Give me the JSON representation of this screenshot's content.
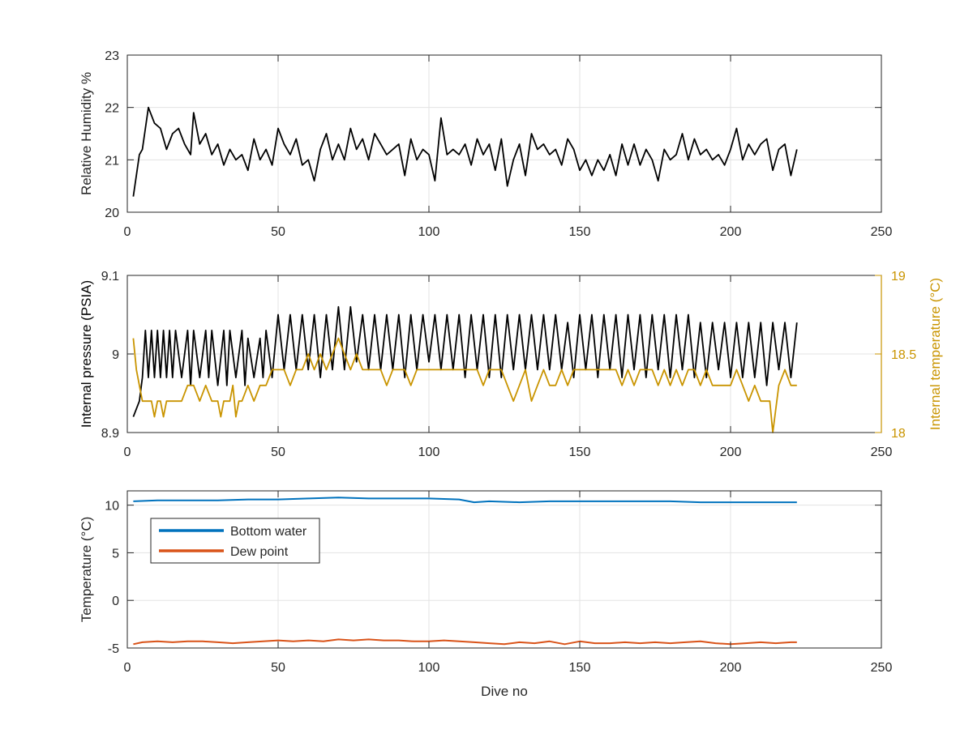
{
  "chart_data": [
    {
      "type": "line",
      "xlabel": "",
      "ylabel": "Relative Humidity %",
      "xlim": [
        0,
        250
      ],
      "ylim": [
        20,
        23
      ],
      "x_ticks": [
        0,
        50,
        100,
        150,
        200,
        250
      ],
      "y_ticks": [
        20,
        21,
        22,
        23
      ],
      "grid": true,
      "series": [
        {
          "color": "#000000",
          "x": [
            2,
            4,
            5,
            7,
            9,
            11,
            13,
            15,
            17,
            19,
            21,
            22,
            24,
            26,
            28,
            30,
            32,
            34,
            36,
            38,
            40,
            42,
            44,
            46,
            48,
            50,
            52,
            54,
            56,
            58,
            60,
            62,
            64,
            66,
            68,
            70,
            72,
            74,
            76,
            78,
            80,
            82,
            84,
            86,
            88,
            90,
            92,
            94,
            96,
            98,
            100,
            102,
            104,
            106,
            108,
            110,
            112,
            114,
            116,
            118,
            120,
            122,
            124,
            126,
            128,
            130,
            132,
            134,
            136,
            138,
            140,
            142,
            144,
            146,
            148,
            150,
            152,
            154,
            156,
            158,
            160,
            162,
            164,
            166,
            168,
            170,
            172,
            174,
            176,
            178,
            180,
            182,
            184,
            186,
            188,
            190,
            192,
            194,
            196,
            198,
            200,
            202,
            204,
            206,
            208,
            210,
            212,
            214,
            216,
            218,
            220,
            222
          ],
          "y": [
            20.3,
            21.1,
            21.2,
            22.0,
            21.7,
            21.6,
            21.2,
            21.5,
            21.6,
            21.3,
            21.1,
            21.9,
            21.3,
            21.5,
            21.1,
            21.3,
            20.9,
            21.2,
            21.0,
            21.1,
            20.8,
            21.4,
            21.0,
            21.2,
            20.9,
            21.6,
            21.3,
            21.1,
            21.4,
            20.9,
            21.0,
            20.6,
            21.2,
            21.5,
            21.0,
            21.3,
            21.0,
            21.6,
            21.2,
            21.4,
            21.0,
            21.5,
            21.3,
            21.1,
            21.2,
            21.3,
            20.7,
            21.4,
            21.0,
            21.2,
            21.1,
            20.6,
            21.8,
            21.1,
            21.2,
            21.1,
            21.3,
            20.9,
            21.4,
            21.1,
            21.3,
            20.8,
            21.4,
            20.5,
            21.0,
            21.3,
            20.7,
            21.5,
            21.2,
            21.3,
            21.1,
            21.2,
            20.9,
            21.4,
            21.2,
            20.8,
            21.0,
            20.7,
            21.0,
            20.8,
            21.1,
            20.7,
            21.3,
            20.9,
            21.3,
            20.9,
            21.2,
            21.0,
            20.6,
            21.2,
            21.0,
            21.1,
            21.5,
            21.0,
            21.4,
            21.1,
            21.2,
            21.0,
            21.1,
            20.9,
            21.2,
            21.6,
            21.0,
            21.3,
            21.1,
            21.3,
            21.4,
            20.8,
            21.2,
            21.3,
            20.7,
            21.2
          ]
        }
      ]
    },
    {
      "type": "line",
      "xlabel": "",
      "ylabel": "Internal pressure (PSIA)",
      "ylabel_right": "Internal temperature (°C)",
      "xlim": [
        0,
        250
      ],
      "ylim": [
        8.9,
        9.1
      ],
      "ylim_right": [
        18,
        19
      ],
      "x_ticks": [
        0,
        50,
        100,
        150,
        200,
        250
      ],
      "y_ticks": [
        "8.9",
        "9",
        "9.1"
      ],
      "y_ticks_right": [
        "18",
        "18.5",
        "19"
      ],
      "grid": true,
      "series": [
        {
          "axis": "left",
          "color": "#000000",
          "x": [
            2,
            4,
            5,
            6,
            7,
            8,
            9,
            10,
            11,
            12,
            13,
            14,
            15,
            16,
            18,
            20,
            21,
            22,
            24,
            26,
            27,
            28,
            30,
            32,
            33,
            34,
            36,
            38,
            39,
            40,
            42,
            44,
            45,
            46,
            48,
            50,
            52,
            54,
            56,
            58,
            60,
            62,
            64,
            66,
            68,
            70,
            72,
            74,
            76,
            78,
            80,
            82,
            84,
            86,
            88,
            90,
            92,
            94,
            96,
            98,
            100,
            102,
            104,
            106,
            108,
            110,
            112,
            114,
            116,
            118,
            120,
            122,
            124,
            126,
            128,
            130,
            132,
            134,
            136,
            138,
            140,
            142,
            144,
            146,
            148,
            150,
            152,
            154,
            156,
            158,
            160,
            162,
            164,
            166,
            168,
            170,
            172,
            174,
            176,
            178,
            180,
            182,
            184,
            186,
            188,
            190,
            192,
            194,
            196,
            198,
            200,
            202,
            204,
            206,
            208,
            210,
            212,
            214,
            216,
            218,
            220,
            222
          ],
          "y": [
            8.92,
            8.94,
            8.97,
            9.03,
            8.97,
            9.03,
            8.97,
            9.03,
            8.97,
            9.03,
            8.97,
            9.03,
            8.97,
            9.03,
            8.97,
            9.03,
            8.96,
            9.03,
            8.97,
            9.03,
            8.97,
            9.03,
            8.96,
            9.03,
            8.96,
            9.03,
            8.97,
            9.03,
            8.96,
            9.02,
            8.97,
            9.02,
            8.97,
            9.03,
            8.97,
            9.05,
            8.98,
            9.05,
            8.98,
            9.05,
            8.98,
            9.05,
            8.97,
            9.05,
            8.98,
            9.06,
            8.98,
            9.06,
            8.99,
            9.05,
            8.98,
            9.05,
            8.98,
            9.05,
            8.98,
            9.05,
            8.97,
            9.05,
            8.98,
            9.05,
            8.99,
            9.05,
            8.98,
            9.05,
            8.98,
            9.05,
            8.97,
            9.05,
            8.98,
            9.05,
            8.97,
            9.05,
            8.97,
            9.05,
            8.98,
            9.05,
            8.98,
            9.05,
            8.98,
            9.05,
            8.98,
            9.05,
            8.98,
            9.04,
            8.97,
            9.05,
            8.98,
            9.05,
            8.97,
            9.05,
            8.98,
            9.05,
            8.97,
            9.05,
            8.98,
            9.05,
            8.97,
            9.05,
            8.98,
            9.05,
            8.97,
            9.05,
            8.98,
            9.05,
            8.97,
            9.04,
            8.97,
            9.04,
            8.98,
            9.04,
            8.97,
            9.04,
            8.97,
            9.04,
            8.97,
            9.04,
            8.96,
            9.04,
            8.98,
            9.04,
            8.97,
            9.04
          ]
        },
        {
          "axis": "right",
          "color": "#c99400",
          "x": [
            2,
            3,
            4,
            5,
            6,
            8,
            9,
            10,
            11,
            12,
            13,
            14,
            16,
            18,
            20,
            22,
            24,
            26,
            28,
            30,
            31,
            32,
            34,
            35,
            36,
            37,
            38,
            40,
            42,
            44,
            46,
            48,
            50,
            52,
            54,
            56,
            58,
            60,
            62,
            64,
            66,
            68,
            70,
            72,
            74,
            76,
            78,
            80,
            82,
            84,
            86,
            88,
            90,
            92,
            94,
            96,
            98,
            100,
            102,
            104,
            106,
            108,
            110,
            112,
            114,
            116,
            118,
            120,
            122,
            124,
            126,
            128,
            130,
            132,
            134,
            136,
            138,
            140,
            142,
            144,
            146,
            148,
            150,
            152,
            154,
            156,
            158,
            160,
            162,
            164,
            166,
            168,
            170,
            172,
            174,
            176,
            178,
            180,
            182,
            184,
            186,
            188,
            190,
            192,
            194,
            196,
            198,
            200,
            202,
            204,
            206,
            208,
            210,
            212,
            213,
            214,
            216,
            218,
            220,
            222
          ],
          "y": [
            18.6,
            18.4,
            18.3,
            18.2,
            18.2,
            18.2,
            18.1,
            18.2,
            18.2,
            18.1,
            18.2,
            18.2,
            18.2,
            18.2,
            18.3,
            18.3,
            18.2,
            18.3,
            18.2,
            18.2,
            18.1,
            18.2,
            18.2,
            18.3,
            18.1,
            18.2,
            18.2,
            18.3,
            18.2,
            18.3,
            18.3,
            18.4,
            18.4,
            18.4,
            18.3,
            18.4,
            18.4,
            18.5,
            18.4,
            18.5,
            18.4,
            18.5,
            18.6,
            18.5,
            18.4,
            18.5,
            18.4,
            18.4,
            18.4,
            18.4,
            18.3,
            18.4,
            18.4,
            18.4,
            18.3,
            18.4,
            18.4,
            18.4,
            18.4,
            18.4,
            18.4,
            18.4,
            18.4,
            18.4,
            18.4,
            18.4,
            18.3,
            18.4,
            18.4,
            18.4,
            18.3,
            18.2,
            18.3,
            18.4,
            18.2,
            18.3,
            18.4,
            18.3,
            18.3,
            18.4,
            18.3,
            18.4,
            18.4,
            18.4,
            18.4,
            18.4,
            18.4,
            18.4,
            18.4,
            18.3,
            18.4,
            18.3,
            18.4,
            18.4,
            18.4,
            18.3,
            18.4,
            18.3,
            18.4,
            18.3,
            18.4,
            18.4,
            18.3,
            18.4,
            18.3,
            18.3,
            18.3,
            18.3,
            18.4,
            18.3,
            18.2,
            18.3,
            18.2,
            18.2,
            18.2,
            18.0,
            18.3,
            18.4,
            18.3,
            18.3
          ]
        }
      ]
    },
    {
      "type": "line",
      "xlabel": "Dive no",
      "ylabel": "Temperature (°C)",
      "xlim": [
        0,
        250
      ],
      "ylim": [
        -5,
        11.5
      ],
      "x_ticks": [
        0,
        50,
        100,
        150,
        200,
        250
      ],
      "y_ticks": [
        -5,
        0,
        5,
        10
      ],
      "grid": true,
      "legend": "top-left",
      "series": [
        {
          "name": "Bottom water",
          "color": "#0072bd",
          "x": [
            2,
            10,
            20,
            30,
            40,
            50,
            60,
            70,
            80,
            90,
            100,
            110,
            115,
            120,
            130,
            140,
            150,
            160,
            170,
            180,
            190,
            200,
            210,
            222
          ],
          "y": [
            10.4,
            10.5,
            10.5,
            10.5,
            10.6,
            10.6,
            10.7,
            10.8,
            10.7,
            10.7,
            10.7,
            10.6,
            10.3,
            10.4,
            10.3,
            10.4,
            10.4,
            10.4,
            10.4,
            10.4,
            10.3,
            10.3,
            10.3,
            10.3
          ]
        },
        {
          "name": "Dew point",
          "color": "#d95319",
          "x": [
            2,
            5,
            10,
            15,
            20,
            25,
            30,
            35,
            40,
            45,
            50,
            55,
            60,
            65,
            70,
            75,
            80,
            85,
            90,
            95,
            100,
            105,
            110,
            115,
            120,
            125,
            130,
            135,
            140,
            145,
            150,
            155,
            160,
            165,
            170,
            175,
            180,
            185,
            190,
            195,
            200,
            205,
            210,
            215,
            220,
            222
          ],
          "y": [
            -4.6,
            -4.4,
            -4.3,
            -4.4,
            -4.3,
            -4.3,
            -4.4,
            -4.5,
            -4.4,
            -4.3,
            -4.2,
            -4.3,
            -4.2,
            -4.3,
            -4.1,
            -4.2,
            -4.1,
            -4.2,
            -4.2,
            -4.3,
            -4.3,
            -4.2,
            -4.3,
            -4.4,
            -4.5,
            -4.6,
            -4.4,
            -4.5,
            -4.3,
            -4.6,
            -4.3,
            -4.5,
            -4.5,
            -4.4,
            -4.5,
            -4.4,
            -4.5,
            -4.4,
            -4.3,
            -4.5,
            -4.6,
            -4.5,
            -4.4,
            -4.5,
            -4.4,
            -4.4
          ]
        }
      ]
    }
  ]
}
